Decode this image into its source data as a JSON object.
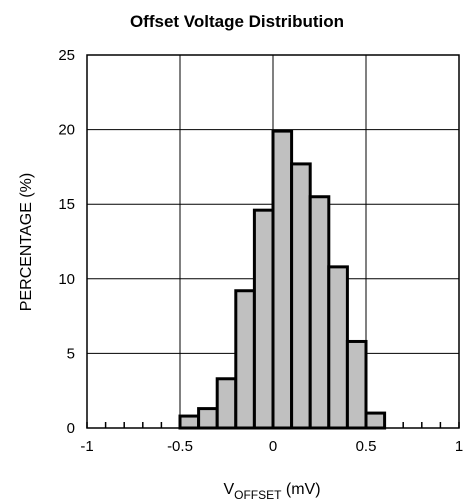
{
  "chart_data": {
    "type": "bar",
    "title": "Offset Voltage Distribution",
    "xlabel": {
      "main": "V",
      "subscript": "OFFSET",
      "unit": " (mV)"
    },
    "ylabel": "PERCENTAGE (%)",
    "xlim": [
      -1,
      1
    ],
    "ylim": [
      0,
      25
    ],
    "x_ticks": [
      "-1",
      "-0.5",
      "0",
      "0.5",
      "1"
    ],
    "y_ticks": [
      "0",
      "5",
      "10",
      "15",
      "20",
      "25"
    ],
    "grid": true,
    "bar_color": "#c0c0c0",
    "bin_width": 0.1,
    "bins": [
      {
        "x": -0.45,
        "value": 0.8
      },
      {
        "x": -0.35,
        "value": 1.3
      },
      {
        "x": -0.25,
        "value": 3.3
      },
      {
        "x": -0.15,
        "value": 9.2
      },
      {
        "x": -0.05,
        "value": 14.6
      },
      {
        "x": 0.05,
        "value": 19.9
      },
      {
        "x": 0.15,
        "value": 17.7
      },
      {
        "x": 0.25,
        "value": 15.5
      },
      {
        "x": 0.35,
        "value": 10.8
      },
      {
        "x": 0.45,
        "value": 5.8
      },
      {
        "x": 0.55,
        "value": 1.0
      }
    ]
  }
}
